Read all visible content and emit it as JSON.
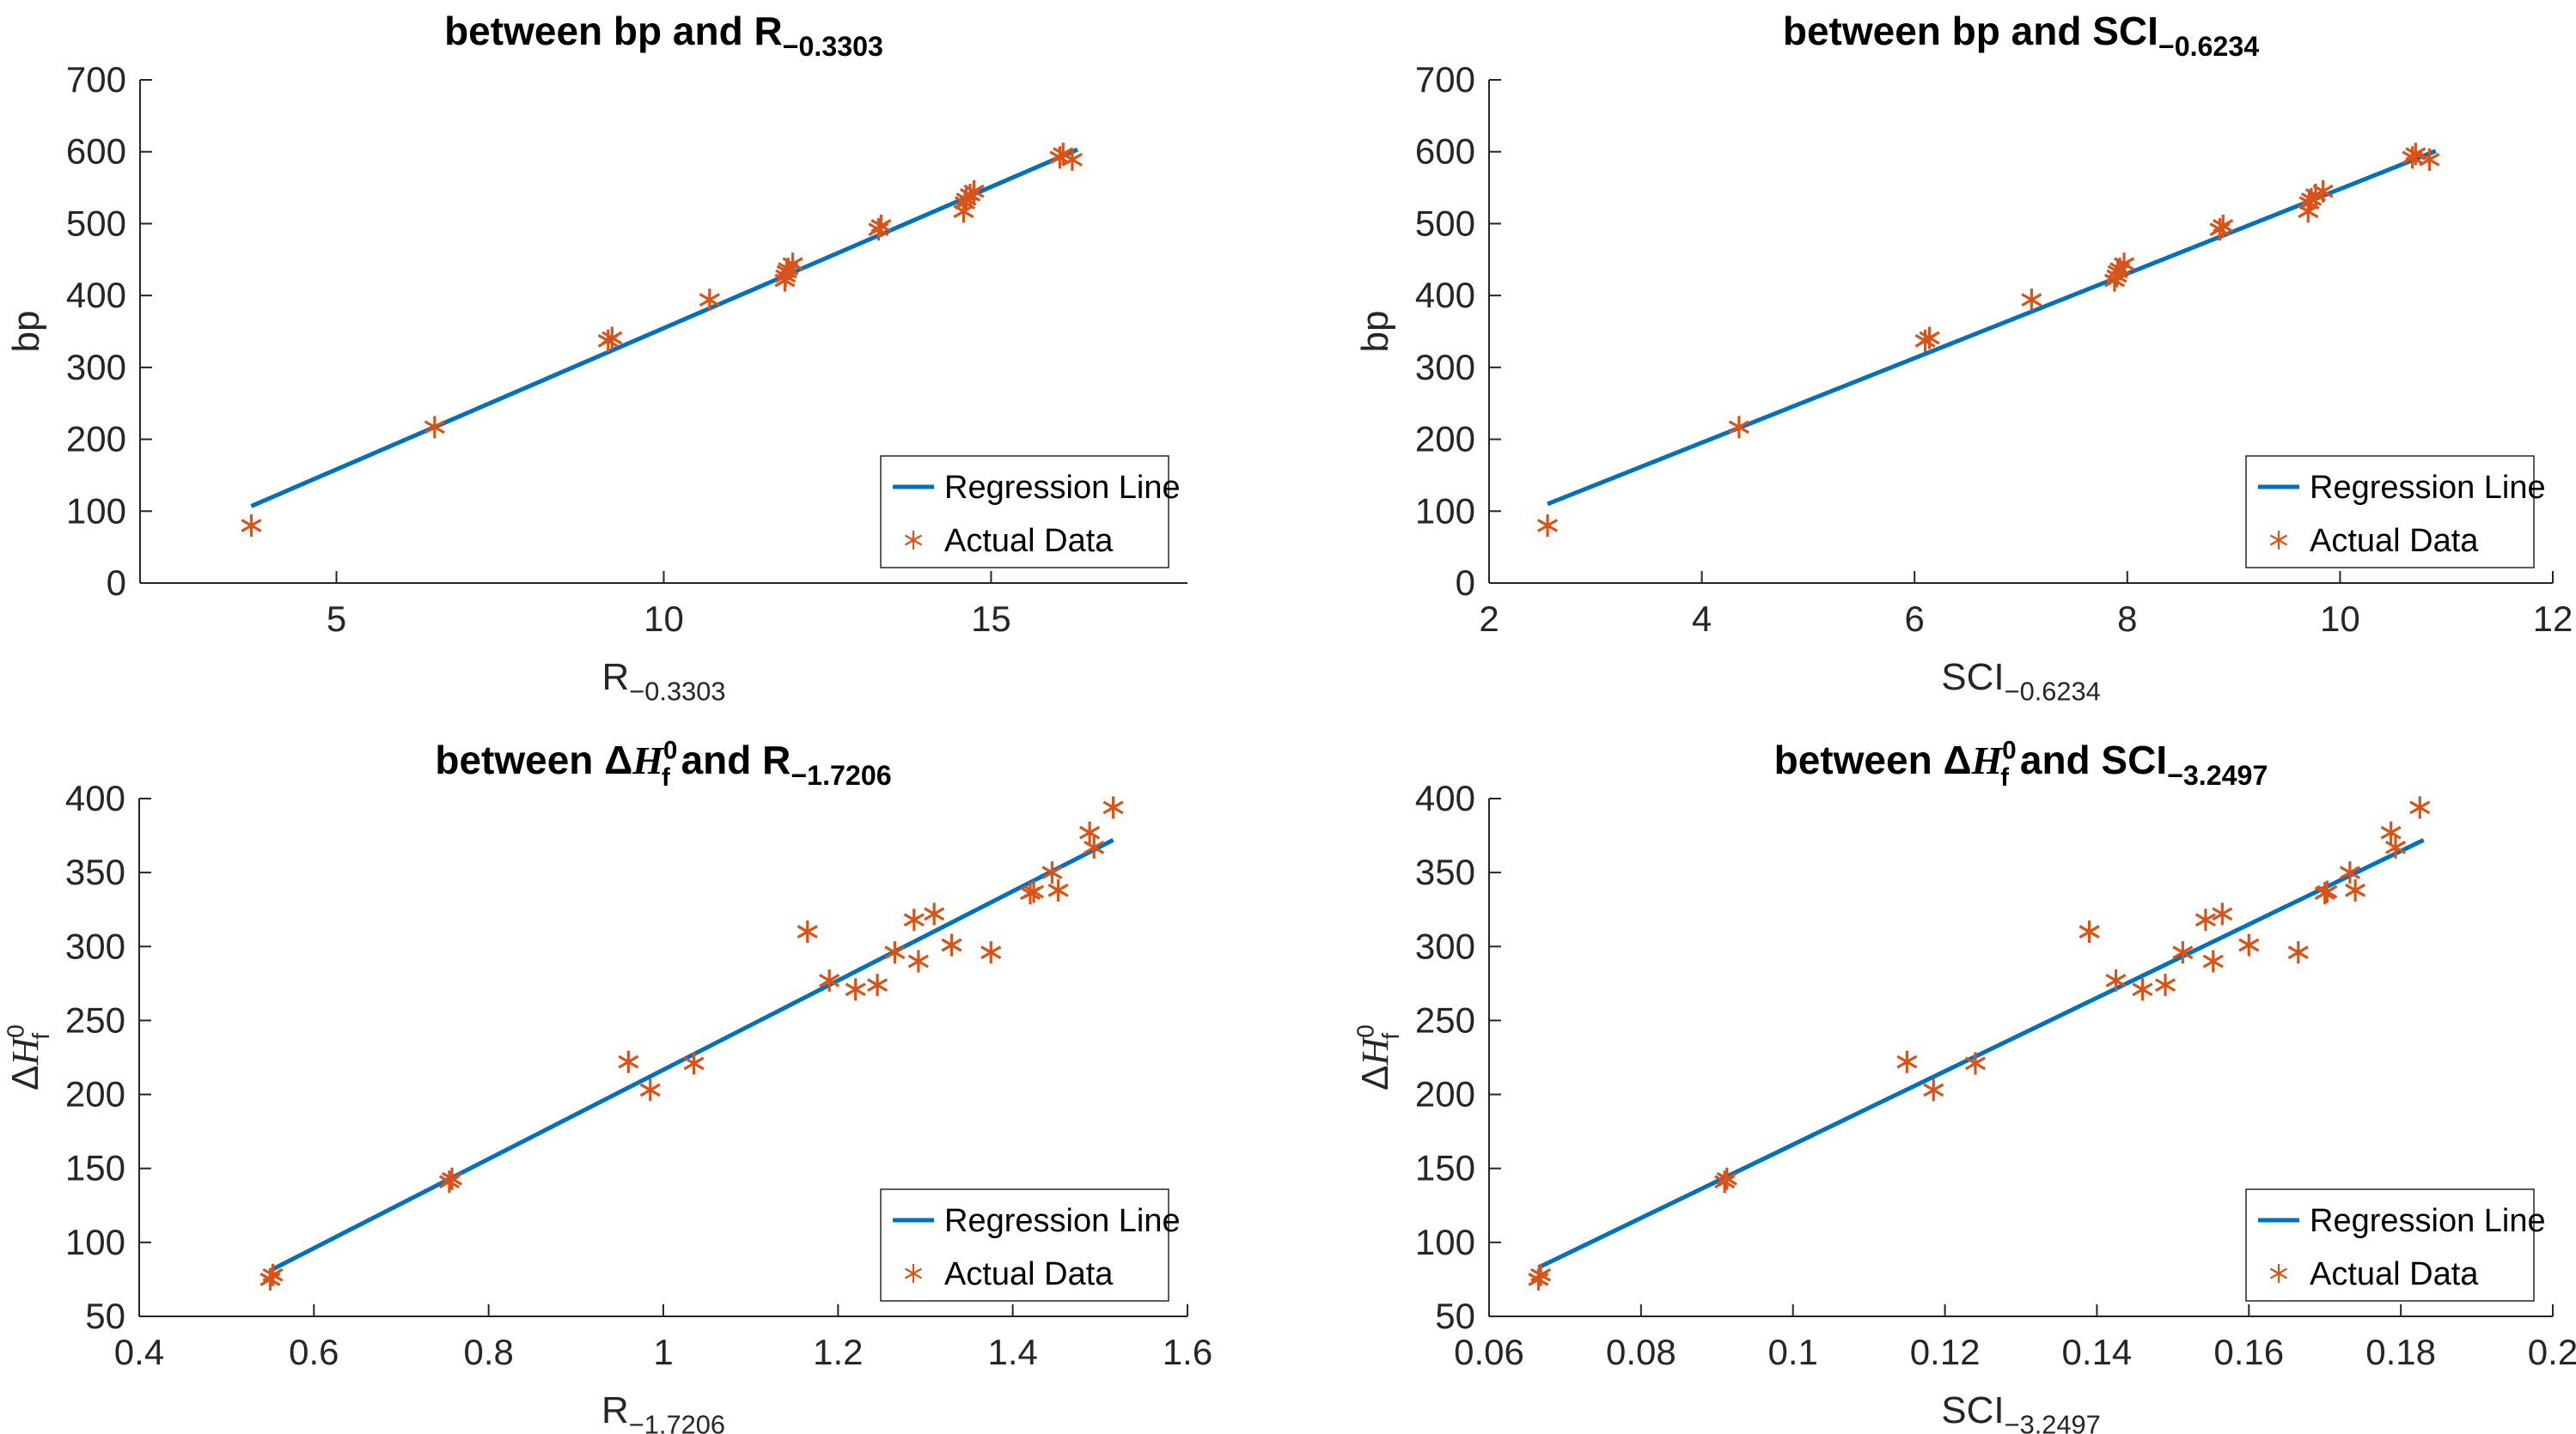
{
  "figure": {
    "background": "#ffffff",
    "colors": {
      "regression_line": "#0072BD",
      "actual_data": "#D95319",
      "axis": "#262626",
      "tick_label": "#262626",
      "title": "#000000",
      "legend_border": "#262626",
      "legend_background": "#ffffff"
    }
  },
  "chart_data": [
    {
      "id": "bp-vs-r",
      "type": "scatter",
      "title_text": "between bp and R−0.3303",
      "title_segments": [
        {
          "t": "between bp and R"
        },
        {
          "t": "−0.3303",
          "sub": true
        }
      ],
      "xlabel_text": "R−0.3303",
      "xlabel_segments": [
        {
          "t": "R"
        },
        {
          "t": "−0.3303",
          "sub": true
        }
      ],
      "ylabel_text": "bp",
      "ylabel_segments": [
        {
          "t": "bp"
        }
      ],
      "xlim": [
        2,
        18
      ],
      "ylim": [
        0,
        700
      ],
      "xticks": [
        5,
        10,
        15
      ],
      "xtick_labels": [
        "5",
        "10",
        "15"
      ],
      "yticks": [
        0,
        100,
        200,
        300,
        400,
        500,
        600,
        700
      ],
      "ytick_labels": [
        "0",
        "100",
        "200",
        "300",
        "400",
        "500",
        "600",
        "700"
      ],
      "grid": false,
      "legend": {
        "position": "bottom-right",
        "items": [
          {
            "label": "Regression Line",
            "swatch": "line"
          },
          {
            "label": "Actual Data",
            "swatch": "asterisk"
          }
        ]
      },
      "series": [
        {
          "name": "Regression Line",
          "type": "line",
          "x": [
            3.7,
            16.32
          ],
          "y": [
            107,
            603
          ]
        },
        {
          "name": "Actual Data",
          "type": "scatter",
          "points": [
            [
              3.7,
              80
            ],
            [
              6.5,
              217
            ],
            [
              9.15,
              337
            ],
            [
              9.21,
              341
            ],
            [
              10.7,
              394
            ],
            [
              11.85,
              421
            ],
            [
              11.86,
              427
            ],
            [
              11.88,
              433
            ],
            [
              11.9,
              437
            ],
            [
              11.97,
              444
            ],
            [
              13.28,
              492
            ],
            [
              13.32,
              497
            ],
            [
              14.58,
              517
            ],
            [
              14.6,
              529
            ],
            [
              14.62,
              534
            ],
            [
              14.68,
              540
            ],
            [
              14.74,
              545
            ],
            [
              16.05,
              592
            ],
            [
              16.1,
              597
            ],
            [
              16.24,
              589
            ]
          ]
        }
      ]
    },
    {
      "id": "bp-vs-sci",
      "type": "scatter",
      "title_text": "between bp and SCI−0.6234",
      "title_segments": [
        {
          "t": "between bp and SCI"
        },
        {
          "t": "−0.6234",
          "sub": true
        }
      ],
      "xlabel_text": "SCI−0.6234",
      "xlabel_segments": [
        {
          "t": "SCI"
        },
        {
          "t": "−0.6234",
          "sub": true
        }
      ],
      "ylabel_text": "bp",
      "ylabel_segments": [
        {
          "t": "bp"
        }
      ],
      "xlim": [
        2,
        12
      ],
      "ylim": [
        0,
        700
      ],
      "xticks": [
        2,
        4,
        6,
        8,
        10,
        12
      ],
      "xtick_labels": [
        "2",
        "4",
        "6",
        "8",
        "10",
        "12"
      ],
      "yticks": [
        0,
        100,
        200,
        300,
        400,
        500,
        600,
        700
      ],
      "ytick_labels": [
        "0",
        "100",
        "200",
        "300",
        "400",
        "500",
        "600",
        "700"
      ],
      "grid": false,
      "legend": {
        "position": "bottom-right",
        "items": [
          {
            "label": "Regression Line",
            "swatch": "line"
          },
          {
            "label": "Actual Data",
            "swatch": "asterisk"
          }
        ]
      },
      "series": [
        {
          "name": "Regression Line",
          "type": "line",
          "x": [
            2.55,
            10.9
          ],
          "y": [
            110,
            601
          ]
        },
        {
          "name": "Actual Data",
          "type": "scatter",
          "points": [
            [
              2.55,
              80
            ],
            [
              4.35,
              217
            ],
            [
              6.1,
              337
            ],
            [
              6.14,
              341
            ],
            [
              7.1,
              394
            ],
            [
              7.88,
              421
            ],
            [
              7.9,
              427
            ],
            [
              7.91,
              433
            ],
            [
              7.93,
              437
            ],
            [
              7.97,
              444
            ],
            [
              8.87,
              492
            ],
            [
              8.9,
              497
            ],
            [
              9.7,
              517
            ],
            [
              9.71,
              529
            ],
            [
              9.73,
              534
            ],
            [
              9.77,
              540
            ],
            [
              9.84,
              545
            ],
            [
              10.68,
              592
            ],
            [
              10.71,
              597
            ],
            [
              10.84,
              589
            ]
          ]
        }
      ]
    },
    {
      "id": "dhf-vs-r",
      "type": "scatter",
      "title_text": "between ΔHf0 and R−1.7206",
      "title_segments": [
        {
          "t": "between "
        },
        {
          "t": "Δ"
        },
        {
          "t": "H",
          "it": true
        },
        {
          "sup": "0",
          "sub": "f"
        },
        {
          "t": " and R"
        },
        {
          "t": "−1.7206",
          "sub": true
        }
      ],
      "xlabel_text": "R−1.7206",
      "xlabel_segments": [
        {
          "t": "R"
        },
        {
          "t": "−1.7206",
          "sub": true
        }
      ],
      "ylabel_text": "ΔHf0",
      "ylabel_segments": [
        {
          "t": "Δ"
        },
        {
          "t": "H",
          "it": true
        },
        {
          "sup": "0",
          "sub": "f"
        }
      ],
      "xlim": [
        0.4,
        1.6
      ],
      "ylim": [
        50,
        400
      ],
      "xticks": [
        0.4,
        0.6,
        0.8,
        1,
        1.2,
        1.4,
        1.6
      ],
      "xtick_labels": [
        "0.4",
        "0.6",
        "0.8",
        "1",
        "1.2",
        "1.4",
        "1.6"
      ],
      "yticks": [
        50,
        100,
        150,
        200,
        250,
        300,
        350,
        400
      ],
      "ytick_labels": [
        "50",
        "100",
        "150",
        "200",
        "250",
        "300",
        "350",
        "400"
      ],
      "grid": false,
      "legend": {
        "position": "bottom-right",
        "items": [
          {
            "label": "Regression Line",
            "swatch": "line"
          },
          {
            "label": "Actual Data",
            "swatch": "asterisk"
          }
        ]
      },
      "series": [
        {
          "name": "Regression Line",
          "type": "line",
          "x": [
            0.55,
            1.515
          ],
          "y": [
            81,
            372
          ]
        },
        {
          "name": "Actual Data",
          "type": "scatter",
          "points": [
            [
              0.55,
              75
            ],
            [
              0.553,
              78
            ],
            [
              0.755,
              141
            ],
            [
              0.758,
              143
            ],
            [
              0.96,
              222
            ],
            [
              0.985,
              203
            ],
            [
              1.035,
              221
            ],
            [
              1.165,
              310
            ],
            [
              1.19,
              277
            ],
            [
              1.22,
              271
            ],
            [
              1.245,
              274
            ],
            [
              1.265,
              296
            ],
            [
              1.287,
              318
            ],
            [
              1.292,
              290
            ],
            [
              1.31,
              322
            ],
            [
              1.33,
              301
            ],
            [
              1.375,
              296
            ],
            [
              1.42,
              336
            ],
            [
              1.424,
              337
            ],
            [
              1.445,
              350
            ],
            [
              1.452,
              338
            ],
            [
              1.488,
              377
            ],
            [
              1.493,
              367
            ],
            [
              1.515,
              394
            ]
          ]
        }
      ]
    },
    {
      "id": "dhf-vs-sci",
      "type": "scatter",
      "title_text": "between ΔHf0 and SCI−3.2497",
      "title_segments": [
        {
          "t": "between "
        },
        {
          "t": "Δ"
        },
        {
          "t": "H",
          "it": true
        },
        {
          "sup": "0",
          "sub": "f"
        },
        {
          "t": " and SCI"
        },
        {
          "t": "−3.2497",
          "sub": true
        }
      ],
      "xlabel_text": "SCI−3.2497",
      "xlabel_segments": [
        {
          "t": "SCI"
        },
        {
          "t": "−3.2497",
          "sub": true
        }
      ],
      "ylabel_text": "ΔHf0",
      "ylabel_segments": [
        {
          "t": "Δ"
        },
        {
          "t": "H",
          "it": true
        },
        {
          "sup": "0",
          "sub": "f"
        }
      ],
      "xlim": [
        0.06,
        0.2
      ],
      "ylim": [
        50,
        400
      ],
      "xticks": [
        0.06,
        0.08,
        0.1,
        0.12,
        0.14,
        0.16,
        0.18,
        0.2
      ],
      "xtick_labels": [
        "0.06",
        "0.08",
        "0.1",
        "0.12",
        "0.14",
        "0.16",
        "0.18",
        "0.2"
      ],
      "yticks": [
        50,
        100,
        150,
        200,
        250,
        300,
        350,
        400
      ],
      "ytick_labels": [
        "50",
        "100",
        "150",
        "200",
        "250",
        "300",
        "350",
        "400"
      ],
      "grid": false,
      "legend": {
        "position": "bottom-right",
        "items": [
          {
            "label": "Regression Line",
            "swatch": "line"
          },
          {
            "label": "Actual Data",
            "swatch": "asterisk"
          }
        ]
      },
      "series": [
        {
          "name": "Regression Line",
          "type": "line",
          "x": [
            0.0665,
            0.183
          ],
          "y": [
            83,
            372
          ]
        },
        {
          "name": "Actual Data",
          "type": "scatter",
          "points": [
            [
              0.0665,
              75
            ],
            [
              0.0668,
              78
            ],
            [
              0.091,
              141
            ],
            [
              0.0913,
              143
            ],
            [
              0.115,
              222
            ],
            [
              0.1185,
              203
            ],
            [
              0.124,
              221
            ],
            [
              0.139,
              310
            ],
            [
              0.1425,
              277
            ],
            [
              0.146,
              271
            ],
            [
              0.149,
              274
            ],
            [
              0.1513,
              296
            ],
            [
              0.1543,
              318
            ],
            [
              0.1553,
              290
            ],
            [
              0.1565,
              322
            ],
            [
              0.16,
              301
            ],
            [
              0.1665,
              296
            ],
            [
              0.17,
              336
            ],
            [
              0.1703,
              337
            ],
            [
              0.1733,
              350
            ],
            [
              0.174,
              338
            ],
            [
              0.1787,
              377
            ],
            [
              0.1793,
              367
            ],
            [
              0.1825,
              394
            ]
          ]
        }
      ]
    }
  ]
}
